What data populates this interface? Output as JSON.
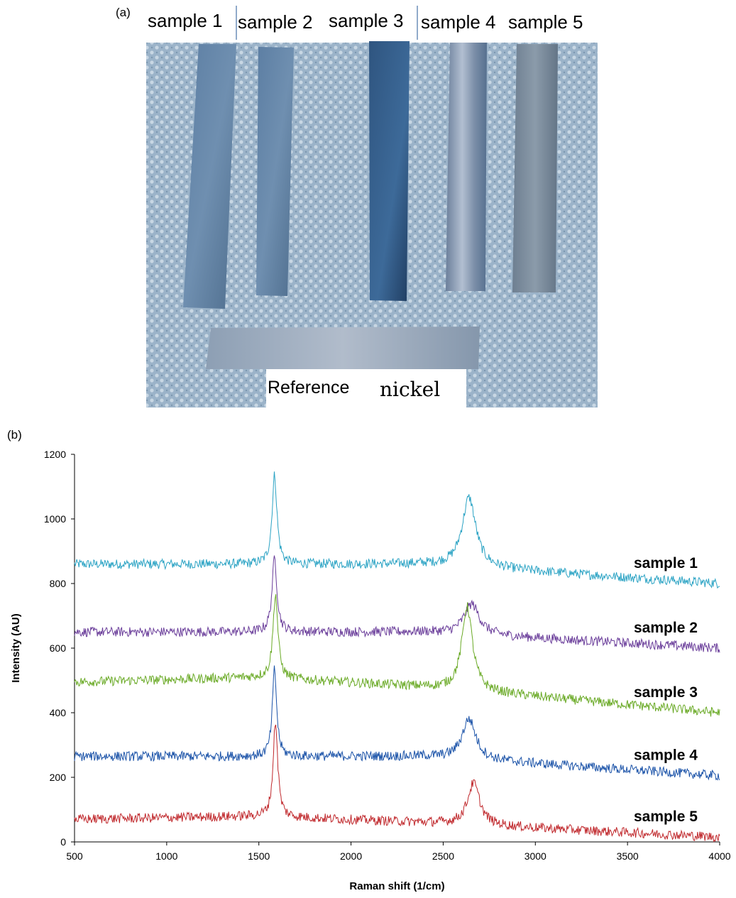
{
  "panel_a": {
    "label": "(a)",
    "strip_labels": [
      "sample 1",
      "sample 2",
      "sample 3",
      "sample 4",
      "sample 5"
    ],
    "reference_word": "Reference",
    "reference_word2": "nickel"
  },
  "panel_b": {
    "label": "(b)"
  },
  "chart_data": {
    "type": "line",
    "xlabel": "Raman shift (1/cm)",
    "ylabel": "Intensity (AU)",
    "xlim": [
      500,
      4000
    ],
    "ylim": [
      0,
      1200
    ],
    "xticks": [
      "500",
      "1000",
      "1500",
      "2000",
      "2500",
      "3000",
      "3500",
      "4000"
    ],
    "yticks": [
      "0",
      "200",
      "400",
      "600",
      "800",
      "1000",
      "1200"
    ],
    "grid": false,
    "series": [
      {
        "name": "sample 1",
        "color": "#2ba3c4",
        "baseline": [
          [
            500,
            860
          ],
          [
            2400,
            860
          ],
          [
            4000,
            800
          ]
        ],
        "peaks": [
          {
            "x": 1585,
            "height": 275,
            "width": 16
          },
          {
            "x": 2640,
            "height": 215,
            "width": 45
          }
        ]
      },
      {
        "name": "sample 2",
        "color": "#6a3d9a",
        "baseline": [
          [
            500,
            650
          ],
          [
            2400,
            650
          ],
          [
            4000,
            600
          ]
        ],
        "peaks": [
          {
            "x": 1585,
            "height": 230,
            "width": 16
          },
          {
            "x": 2655,
            "height": 95,
            "width": 50
          }
        ]
      },
      {
        "name": "sample 3",
        "color": "#6aaa26",
        "baseline": [
          [
            500,
            495
          ],
          [
            1500,
            510
          ],
          [
            2400,
            480
          ],
          [
            4000,
            400
          ]
        ],
        "peaks": [
          {
            "x": 1590,
            "height": 260,
            "width": 16
          },
          {
            "x": 2630,
            "height": 260,
            "width": 35
          }
        ]
      },
      {
        "name": "sample 4",
        "color": "#1a52a8",
        "baseline": [
          [
            500,
            265
          ],
          [
            2400,
            265
          ],
          [
            4000,
            205
          ]
        ],
        "peaks": [
          {
            "x": 1585,
            "height": 270,
            "width": 14
          },
          {
            "x": 2640,
            "height": 125,
            "width": 45
          }
        ]
      },
      {
        "name": "sample 5",
        "color": "#c0282c",
        "baseline": [
          [
            500,
            70
          ],
          [
            1500,
            80
          ],
          [
            2400,
            60
          ],
          [
            4000,
            15
          ]
        ],
        "peaks": [
          {
            "x": 1590,
            "height": 295,
            "width": 15
          },
          {
            "x": 2665,
            "height": 130,
            "width": 40
          }
        ]
      }
    ]
  }
}
